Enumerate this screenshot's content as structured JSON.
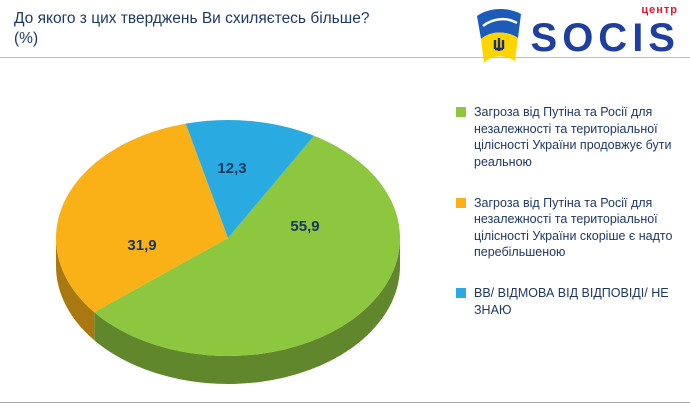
{
  "header": {
    "title": "До якого з цих тверджень Ви схиляєтесь більше? (%)",
    "brand": {
      "wordmark": "SOCIS",
      "wordmark_color": "#1e3fa0",
      "sub": "центр",
      "sub_color": "#e8112d"
    }
  },
  "chart_data": {
    "type": "pie",
    "title": "До якого з цих тверджень Ви схиляєтесь більше? (%)",
    "labels": [
      "Загроза від Путіна та Росії для незалежності та територіальної цілісності України продовжує бути реальною",
      "Загроза від Путіна та Росії для незалежності та територіальної цілісності України скоріше є надто перебільшеною",
      "ВВ/ ВІДМОВА ВІД ВІДПОВІДІ/ НЕ ЗНАЮ"
    ],
    "values": [
      55.9,
      31.9,
      12.3
    ],
    "values_display": [
      "55,9",
      "31,9",
      "12,3"
    ],
    "colors": [
      "#8dc63f",
      "#f9b117",
      "#29abe2"
    ],
    "label_color": "#17365d",
    "legend_position": "right",
    "three_d": true,
    "start_angle_deg": 30
  }
}
